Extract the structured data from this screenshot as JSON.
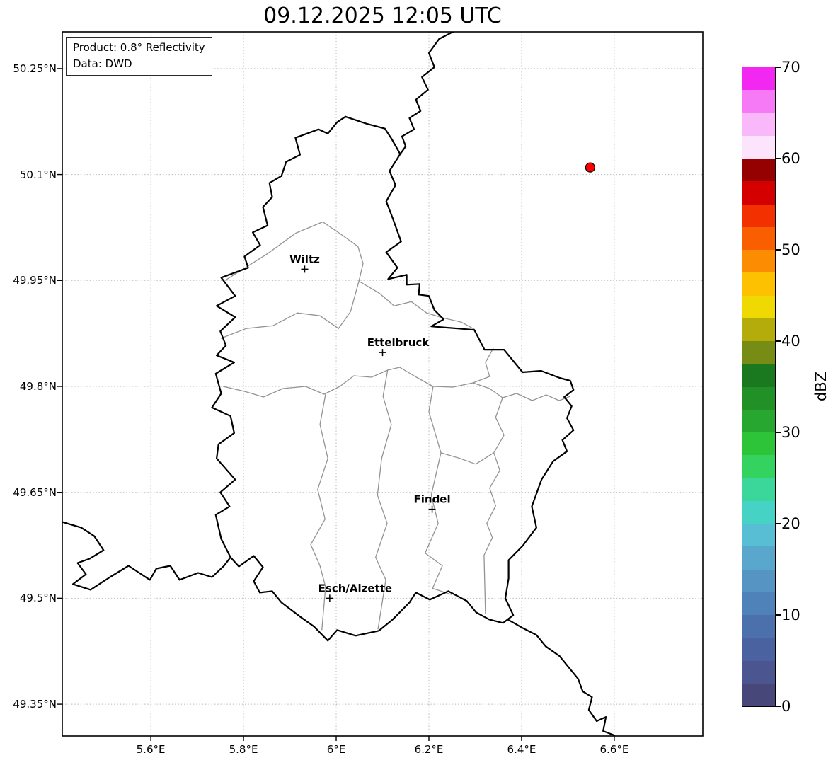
{
  "title": "09.12.2025 12:05 UTC",
  "info_box": {
    "line1": "Product: 0.8° Reflectivity",
    "line2": "Data: DWD"
  },
  "axes": {
    "lat_ticks": [
      {
        "value": 50.25,
        "label": "50.25°N"
      },
      {
        "value": 50.1,
        "label": "50.1°N"
      },
      {
        "value": 49.95,
        "label": "49.95°N"
      },
      {
        "value": 49.8,
        "label": "49.8°N"
      },
      {
        "value": 49.65,
        "label": "49.65°N"
      },
      {
        "value": 49.5,
        "label": "49.5°N"
      },
      {
        "value": 49.35,
        "label": "49.35°N"
      }
    ],
    "lon_ticks": [
      {
        "value": 5.6,
        "label": "5.6°E"
      },
      {
        "value": 5.8,
        "label": "5.8°E"
      },
      {
        "value": 6.0,
        "label": "6°E"
      },
      {
        "value": 6.2,
        "label": "6.2°E"
      },
      {
        "value": 6.4,
        "label": "6.4°E"
      },
      {
        "value": 6.6,
        "label": "6.6°E"
      }
    ]
  },
  "map": {
    "extent": {
      "lon_min": 5.409,
      "lon_max": 6.791,
      "lat_min": 49.305,
      "lat_max": 50.302
    },
    "cities": [
      {
        "name": "Wiltz",
        "lon": 5.932,
        "lat": 49.966
      },
      {
        "name": "Ettelbruck",
        "lon": 6.1,
        "lat": 49.848
      },
      {
        "name": "Findel",
        "lon": 6.207,
        "lat": 49.626
      },
      {
        "name": "Esch/Alzette",
        "lon": 5.986,
        "lat": 49.5
      }
    ],
    "radar_site": {
      "lon": 6.548,
      "lat": 50.11,
      "color": "#ff0000"
    },
    "country_borders": [
      [
        [
          6.02,
          50.182
        ],
        [
          6.065,
          50.172
        ],
        [
          6.105,
          50.165
        ],
        [
          6.12,
          50.15
        ],
        [
          6.138,
          50.129
        ],
        [
          6.115,
          50.105
        ],
        [
          6.128,
          50.085
        ],
        [
          6.108,
          50.062
        ],
        [
          6.122,
          50.038
        ],
        [
          6.14,
          50.005
        ],
        [
          6.108,
          49.99
        ],
        [
          6.132,
          49.968
        ],
        [
          6.112,
          49.952
        ],
        [
          6.152,
          49.958
        ],
        [
          6.152,
          49.944
        ],
        [
          6.18,
          49.945
        ],
        [
          6.178,
          49.93
        ],
        [
          6.2,
          49.928
        ],
        [
          6.212,
          49.908
        ],
        [
          6.232,
          49.895
        ],
        [
          6.205,
          49.885
        ],
        [
          6.262,
          49.882
        ],
        [
          6.298,
          49.88
        ],
        [
          6.32,
          49.852
        ],
        [
          6.362,
          49.852
        ],
        [
          6.402,
          49.82
        ],
        [
          6.442,
          49.822
        ],
        [
          6.482,
          49.812
        ],
        [
          6.505,
          49.808
        ],
        [
          6.512,
          49.795
        ],
        [
          6.492,
          49.785
        ],
        [
          6.508,
          49.772
        ],
        [
          6.498,
          49.755
        ],
        [
          6.512,
          49.738
        ],
        [
          6.488,
          49.724
        ],
        [
          6.498,
          49.708
        ],
        [
          6.468,
          49.694
        ],
        [
          6.443,
          49.668
        ],
        [
          6.422,
          49.63
        ],
        [
          6.432,
          49.6
        ],
        [
          6.402,
          49.574
        ],
        [
          6.372,
          49.554
        ],
        [
          6.372,
          49.528
        ],
        [
          6.365,
          49.5
        ],
        [
          6.382,
          49.476
        ],
        [
          6.36,
          49.465
        ],
        [
          6.33,
          49.47
        ],
        [
          6.302,
          49.48
        ],
        [
          6.282,
          49.496
        ],
        [
          6.242,
          49.51
        ],
        [
          6.202,
          49.498
        ],
        [
          6.172,
          49.508
        ],
        [
          6.158,
          49.494
        ],
        [
          6.122,
          49.47
        ],
        [
          6.092,
          49.454
        ],
        [
          6.042,
          49.447
        ],
        [
          6.002,
          49.455
        ],
        [
          5.982,
          49.44
        ],
        [
          5.952,
          49.46
        ],
        [
          5.922,
          49.474
        ],
        [
          5.882,
          49.494
        ],
        [
          5.862,
          49.51
        ],
        [
          5.835,
          49.508
        ],
        [
          5.822,
          49.524
        ],
        [
          5.842,
          49.544
        ],
        [
          5.822,
          49.56
        ],
        [
          5.79,
          49.545
        ],
        [
          5.772,
          49.558
        ],
        [
          5.752,
          49.584
        ],
        [
          5.74,
          49.618
        ],
        [
          5.77,
          49.63
        ],
        [
          5.75,
          49.65
        ],
        [
          5.782,
          49.668
        ],
        [
          5.742,
          49.698
        ],
        [
          5.746,
          49.718
        ],
        [
          5.78,
          49.734
        ],
        [
          5.772,
          49.758
        ],
        [
          5.732,
          49.77
        ],
        [
          5.752,
          49.79
        ],
        [
          5.74,
          49.818
        ],
        [
          5.78,
          49.834
        ],
        [
          5.742,
          49.844
        ],
        [
          5.762,
          49.858
        ],
        [
          5.75,
          49.878
        ],
        [
          5.782,
          49.898
        ],
        [
          5.742,
          49.914
        ],
        [
          5.782,
          49.928
        ],
        [
          5.752,
          49.954
        ],
        [
          5.81,
          49.968
        ],
        [
          5.802,
          49.984
        ],
        [
          5.836,
          50.0
        ],
        [
          5.82,
          50.018
        ],
        [
          5.852,
          50.028
        ],
        [
          5.842,
          50.054
        ],
        [
          5.862,
          50.068
        ],
        [
          5.856,
          50.088
        ],
        [
          5.882,
          50.098
        ],
        [
          5.892,
          50.118
        ],
        [
          5.922,
          50.128
        ],
        [
          5.912,
          50.152
        ],
        [
          5.962,
          50.164
        ],
        [
          5.982,
          50.158
        ],
        [
          6.002,
          50.174
        ],
        [
          6.02,
          50.182
        ]
      ],
      [
        [
          6.252,
          50.302
        ],
        [
          6.222,
          50.292
        ],
        [
          6.2,
          50.272
        ],
        [
          6.212,
          50.252
        ],
        [
          6.185,
          50.238
        ],
        [
          6.198,
          50.22
        ],
        [
          6.172,
          50.206
        ],
        [
          6.182,
          50.19
        ],
        [
          6.158,
          50.18
        ],
        [
          6.168,
          50.164
        ],
        [
          6.142,
          50.154
        ],
        [
          6.15,
          50.14
        ],
        [
          6.138,
          50.129
        ]
      ],
      [
        [
          5.409,
          49.608
        ],
        [
          5.45,
          49.6
        ],
        [
          5.478,
          49.588
        ],
        [
          5.498,
          49.568
        ],
        [
          5.468,
          49.556
        ],
        [
          5.442,
          49.55
        ],
        [
          5.46,
          49.534
        ],
        [
          5.432,
          49.52
        ],
        [
          5.47,
          49.512
        ],
        [
          5.512,
          49.53
        ],
        [
          5.552,
          49.546
        ],
        [
          5.598,
          49.526
        ],
        [
          5.612,
          49.542
        ],
        [
          5.642,
          49.546
        ],
        [
          5.662,
          49.526
        ],
        [
          5.702,
          49.536
        ],
        [
          5.732,
          49.53
        ],
        [
          5.758,
          49.546
        ],
        [
          5.772,
          49.558
        ]
      ],
      [
        [
          6.37,
          49.47
        ],
        [
          6.402,
          49.458
        ],
        [
          6.432,
          49.448
        ],
        [
          6.452,
          49.432
        ],
        [
          6.482,
          49.418
        ],
        [
          6.502,
          49.402
        ],
        [
          6.522,
          49.386
        ],
        [
          6.532,
          49.368
        ],
        [
          6.552,
          49.36
        ],
        [
          6.545,
          49.342
        ],
        [
          6.562,
          49.326
        ],
        [
          6.582,
          49.332
        ],
        [
          6.576,
          49.312
        ],
        [
          6.6,
          49.306
        ],
        [
          6.606,
          49.296
        ]
      ]
    ],
    "district_borders": [
      [
        [
          5.76,
          49.95
        ],
        [
          5.852,
          49.988
        ],
        [
          5.913,
          50.017
        ],
        [
          5.971,
          50.033
        ],
        [
          6.011,
          50.015
        ],
        [
          6.047,
          49.998
        ],
        [
          6.058,
          49.974
        ],
        [
          6.049,
          49.949
        ]
      ],
      [
        [
          6.049,
          49.949
        ],
        [
          6.093,
          49.932
        ],
        [
          6.125,
          49.914
        ],
        [
          6.162,
          49.92
        ],
        [
          6.195,
          49.904
        ],
        [
          6.231,
          49.897
        ],
        [
          6.27,
          49.891
        ],
        [
          6.298,
          49.881
        ]
      ],
      [
        [
          5.751,
          49.868
        ],
        [
          5.806,
          49.882
        ],
        [
          5.864,
          49.886
        ],
        [
          5.916,
          49.904
        ],
        [
          5.965,
          49.9
        ],
        [
          6.005,
          49.882
        ],
        [
          6.031,
          49.906
        ],
        [
          6.049,
          49.949
        ]
      ],
      [
        [
          5.756,
          49.8
        ],
        [
          5.802,
          49.793
        ],
        [
          5.843,
          49.785
        ],
        [
          5.885,
          49.797
        ],
        [
          5.934,
          49.8
        ],
        [
          5.974,
          49.789
        ],
        [
          6.008,
          49.8
        ],
        [
          6.038,
          49.815
        ],
        [
          6.076,
          49.813
        ],
        [
          6.111,
          49.823
        ],
        [
          6.137,
          49.827
        ],
        [
          6.173,
          49.813
        ],
        [
          6.209,
          49.8
        ],
        [
          6.252,
          49.799
        ],
        [
          6.295,
          49.805
        ],
        [
          6.331,
          49.797
        ],
        [
          6.359,
          49.784
        ],
        [
          6.389,
          49.79
        ],
        [
          6.423,
          49.78
        ],
        [
          6.453,
          49.788
        ],
        [
          6.481,
          49.78
        ],
        [
          6.505,
          49.786
        ]
      ],
      [
        [
          5.977,
          49.789
        ],
        [
          5.965,
          49.746
        ],
        [
          5.982,
          49.698
        ],
        [
          5.96,
          49.654
        ],
        [
          5.976,
          49.612
        ],
        [
          5.945,
          49.576
        ],
        [
          5.965,
          49.546
        ],
        [
          5.977,
          49.516
        ],
        [
          5.969,
          49.455
        ]
      ],
      [
        [
          6.111,
          49.823
        ],
        [
          6.101,
          49.786
        ],
        [
          6.119,
          49.746
        ],
        [
          6.098,
          49.698
        ],
        [
          6.089,
          49.646
        ],
        [
          6.11,
          49.606
        ],
        [
          6.085,
          49.558
        ],
        [
          6.107,
          49.526
        ],
        [
          6.09,
          49.456
        ]
      ],
      [
        [
          6.209,
          49.8
        ],
        [
          6.2,
          49.764
        ],
        [
          6.226,
          49.706
        ],
        [
          6.205,
          49.646
        ],
        [
          6.22,
          49.606
        ],
        [
          6.192,
          49.564
        ],
        [
          6.229,
          49.546
        ],
        [
          6.208,
          49.514
        ],
        [
          6.25,
          49.505
        ]
      ],
      [
        [
          6.339,
          49.854
        ],
        [
          6.322,
          49.834
        ],
        [
          6.331,
          49.814
        ],
        [
          6.295,
          49.805
        ]
      ],
      [
        [
          6.359,
          49.784
        ],
        [
          6.344,
          49.756
        ],
        [
          6.362,
          49.731
        ],
        [
          6.34,
          49.706
        ],
        [
          6.353,
          49.681
        ],
        [
          6.331,
          49.656
        ],
        [
          6.344,
          49.631
        ],
        [
          6.325,
          49.606
        ],
        [
          6.337,
          49.586
        ],
        [
          6.319,
          49.561
        ],
        [
          6.322,
          49.478
        ]
      ],
      [
        [
          6.226,
          49.706
        ],
        [
          6.267,
          49.698
        ],
        [
          6.301,
          49.69
        ],
        [
          6.34,
          49.706
        ]
      ]
    ]
  },
  "colorbar": {
    "label": "dBZ",
    "min": 0,
    "max": 70,
    "ticks": [
      0,
      10,
      20,
      30,
      40,
      50,
      60,
      70
    ],
    "colors_bottom_to_top": [
      "#474879",
      "#4b5590",
      "#4a62a0",
      "#4c70ab",
      "#4f82b8",
      "#5594c3",
      "#5aa7cd",
      "#58bed3",
      "#46d2c5",
      "#3bd79a",
      "#34d25e",
      "#2ec439",
      "#28a730",
      "#219027",
      "#1a781f",
      "#768c14",
      "#b3ac0b",
      "#efd903",
      "#fdc102",
      "#fc8d02",
      "#f95f01",
      "#f33000",
      "#d40000",
      "#950000",
      "#fce4fc",
      "#f9b8f9",
      "#f67af6",
      "#f228f2"
    ]
  }
}
